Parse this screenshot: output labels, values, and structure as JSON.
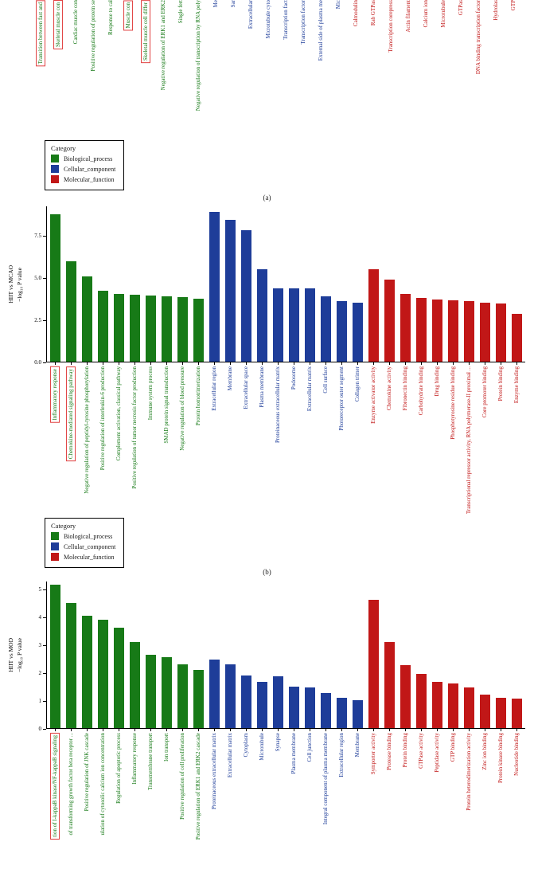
{
  "figure": {
    "legend": {
      "title": "Category",
      "items": [
        {
          "label": "Biological_process",
          "color": "#177a17"
        },
        {
          "label": "Cellular_component",
          "color": "#1e3d99"
        },
        {
          "label": "Molecular_function",
          "color": "#c11717"
        }
      ]
    },
    "panel_labels": {
      "a": "(a)",
      "b": "(b)"
    },
    "highlight_box_color": "#e04040"
  },
  "chart_data": [
    {
      "id": "a",
      "type": "bar",
      "series": [
        {
          "name": "Biological_process",
          "color": "#177a17",
          "items": [
            {
              "label": "Transition between fast and",
              "boxed": true
            },
            {
              "label": "Skeletal muscle con",
              "boxed": true
            },
            {
              "label": "Cardiac muscle con"
            },
            {
              "label": "Positive regulation of protein se"
            },
            {
              "label": "Response to cal"
            },
            {
              "label": "Muscle con",
              "boxed": true
            },
            {
              "label": "Skeletal muscle cell differ",
              "boxed": true
            },
            {
              "label": "Negative regulation of ERK1 and ERK2"
            },
            {
              "label": "Single fert"
            },
            {
              "label": "Negative regulation of transcription by RNA poly"
            }
          ]
        },
        {
          "name": "Cellular_component",
          "color": "#1e3d99",
          "items": [
            {
              "label": "Me"
            },
            {
              "label": "Sar"
            },
            {
              "label": "Extracellular"
            },
            {
              "label": "Microtubule cyto"
            },
            {
              "label": "Transcription fact"
            },
            {
              "label": "Transcription factor"
            },
            {
              "label": "External side of plasma me"
            },
            {
              "label": "Mic"
            }
          ]
        },
        {
          "name": "Molecular_function",
          "color": "#c11717",
          "items": [
            {
              "label": "Calmodulin"
            },
            {
              "label": "Rab GTPas"
            },
            {
              "label": "Transcription corepress"
            },
            {
              "label": "Actin filament"
            },
            {
              "label": "Calcium ion"
            },
            {
              "label": "Microtubule"
            },
            {
              "label": "GTPas"
            },
            {
              "label": "DNA binding transcription factor"
            },
            {
              "label": "Hydrolas"
            },
            {
              "label": "GTP"
            }
          ]
        }
      ]
    },
    {
      "id": "b",
      "type": "bar",
      "ylabel_line1": "HIIT vs MCAO",
      "ylabel_line2": "−log₁₀ P value",
      "ylim": [
        0,
        9.3
      ],
      "yticks": [
        {
          "label": "0.0",
          "value": 0
        },
        {
          "label": "2.5",
          "value": 2.5
        },
        {
          "label": "5.0",
          "value": 5
        },
        {
          "label": "7.5",
          "value": 7.5
        }
      ],
      "series": [
        {
          "name": "Biological_process",
          "color": "#177a17",
          "items": [
            {
              "label": "Inflammatory response",
              "value": 8.8,
              "boxed": true
            },
            {
              "label": "Chemokine-mediated signaling pathway",
              "value": 6.0,
              "boxed": true
            },
            {
              "label": "Negative regulation of peptidyl-tyrosine phosphorylation",
              "value": 5.1
            },
            {
              "label": "Positive regulation of interleukin-6 production",
              "value": 4.2
            },
            {
              "label": "Complement activation, classical pathway",
              "value": 4.05
            },
            {
              "label": "Positive regulation of tumor necrosis factor production",
              "value": 4.0
            },
            {
              "label": "Immune system process",
              "value": 3.95
            },
            {
              "label": "SMAD protein signal transduction",
              "value": 3.9
            },
            {
              "label": "Negative regulation of blood pressure",
              "value": 3.85
            },
            {
              "label": "Protein homotrimerization",
              "value": 3.75
            }
          ]
        },
        {
          "name": "Cellular_component",
          "color": "#1e3d99",
          "items": [
            {
              "label": "Extracellular region",
              "value": 8.9
            },
            {
              "label": "Membrane",
              "value": 8.45
            },
            {
              "label": "Extracellular space",
              "value": 7.85
            },
            {
              "label": "Plasma membrane",
              "value": 5.5
            },
            {
              "label": "Proteinaceous extracellular matrix",
              "value": 4.35
            },
            {
              "label": "Podosome",
              "value": 4.35
            },
            {
              "label": "Extracellular matrix",
              "value": 4.35
            },
            {
              "label": "Cell surface",
              "value": 3.9
            },
            {
              "label": "Photoreceptor outer segment",
              "value": 3.6
            },
            {
              "label": "Collagen trimer",
              "value": 3.5
            }
          ]
        },
        {
          "name": "Molecular_function",
          "color": "#c11717",
          "items": [
            {
              "label": "Enzyme activator activity",
              "value": 5.5
            },
            {
              "label": "Chemokine activity",
              "value": 4.9
            },
            {
              "label": "Fibronectin binding",
              "value": 4.05
            },
            {
              "label": "Carbohydrate binding",
              "value": 3.8
            },
            {
              "label": "Drug binding",
              "value": 3.7
            },
            {
              "label": "Phosphotyrosine residue binding",
              "value": 3.65
            },
            {
              "label": "Transcriptional repressor activity, RNA polymerase-II proximal ...",
              "value": 3.6
            },
            {
              "label": "Core promoter binding",
              "value": 3.5
            },
            {
              "label": "Protein binding",
              "value": 3.45
            },
            {
              "label": "Enzyme binding",
              "value": 2.85
            }
          ]
        }
      ]
    },
    {
      "id": "c",
      "type": "bar",
      "ylabel_line1": "HIIT vs MOD",
      "ylabel_line2": "−log₁₀ P value",
      "ylim": [
        0,
        5.3
      ],
      "yticks": [
        {
          "label": "0",
          "value": 0
        },
        {
          "label": "1",
          "value": 1
        },
        {
          "label": "2",
          "value": 2
        },
        {
          "label": "3",
          "value": 3
        },
        {
          "label": "4",
          "value": 4
        },
        {
          "label": "5",
          "value": 5
        }
      ],
      "series": [
        {
          "name": "Biological_process",
          "color": "#177a17",
          "items": [
            {
              "label": "tion of I-kappaB kinase/NF-kappaB signaling",
              "value": 5.15,
              "boxed": true
            },
            {
              "label": "of transforming growth factor beta receptor ...",
              "value": 4.5
            },
            {
              "label": "Positive regulation of JNK cascade",
              "value": 4.05
            },
            {
              "label": "ulation of cytosolic calcium ion concentration",
              "value": 3.9
            },
            {
              "label": "Regulation of apoptotic process",
              "value": 3.6
            },
            {
              "label": "Inflammatory response",
              "value": 3.1
            },
            {
              "label": "Transmembrane transport",
              "value": 2.65
            },
            {
              "label": "Ion transport",
              "value": 2.55
            },
            {
              "label": "Positive regulation of cell proliferation",
              "value": 2.3
            },
            {
              "label": "Positive regulation of ERK1 and ERK2 cascade",
              "value": 2.1
            }
          ]
        },
        {
          "name": "Cellular_component",
          "color": "#1e3d99",
          "items": [
            {
              "label": "Proteinaceous extracellular matrix",
              "value": 2.45
            },
            {
              "label": "Extracellular matrix",
              "value": 2.3
            },
            {
              "label": "Cytoplasm",
              "value": 1.9
            },
            {
              "label": "Microtubule",
              "value": 1.65
            },
            {
              "label": "Synapse",
              "value": 1.85
            },
            {
              "label": "Plasma membrane",
              "value": 1.5
            },
            {
              "label": "Cell junction",
              "value": 1.45
            },
            {
              "label": "Integral component of plasma membrane",
              "value": 1.25
            },
            {
              "label": "Extracellular region",
              "value": 1.1
            },
            {
              "label": "Membrane",
              "value": 1.0
            }
          ]
        },
        {
          "name": "Molecular_function",
          "color": "#c11717",
          "items": [
            {
              "label": "Symporter activity",
              "value": 4.6
            },
            {
              "label": "Protease binding",
              "value": 3.1
            },
            {
              "label": "Protein binding",
              "value": 2.25
            },
            {
              "label": "GTPase activity",
              "value": 1.95
            },
            {
              "label": "Peptidase activity",
              "value": 1.65
            },
            {
              "label": "GTP binding",
              "value": 1.6
            },
            {
              "label": "Protein heterodimerization activity",
              "value": 1.45
            },
            {
              "label": "Zinc ion binding",
              "value": 1.2
            },
            {
              "label": "Protein kinase binding",
              "value": 1.1
            },
            {
              "label": "Nucleotide binding",
              "value": 1.05
            }
          ]
        }
      ]
    }
  ]
}
